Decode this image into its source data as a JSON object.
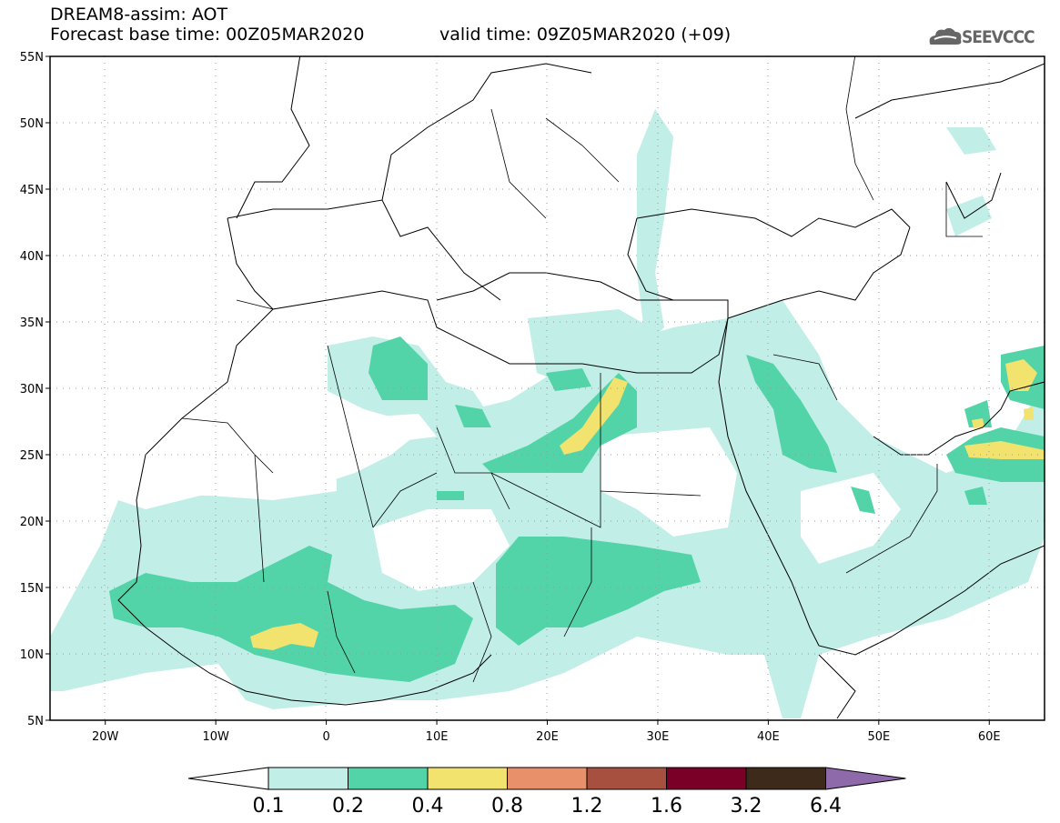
{
  "header": {
    "title": "DREAM8-assim: AOT",
    "forecast_base": "Forecast base time: 00Z05MAR2020",
    "valid_time": "valid time: 09Z05MAR2020 (+09)",
    "logo_text": "SEEVCCC"
  },
  "map": {
    "lat_labels": [
      "55N",
      "50N",
      "45N",
      "40N",
      "35N",
      "30N",
      "25N",
      "20N",
      "15N",
      "10N",
      "5N"
    ],
    "lon_labels": [
      "20W",
      "10W",
      "0",
      "10E",
      "20E",
      "30E",
      "40E",
      "50E",
      "60E"
    ],
    "lon_range": [
      -25,
      65
    ],
    "lat_range": [
      5,
      55
    ],
    "grid": "dotted"
  },
  "colorbar": {
    "levels": [
      "0.1",
      "0.2",
      "0.4",
      "0.8",
      "1.2",
      "1.6",
      "3.2",
      "6.4"
    ],
    "colors": [
      "#ffffff",
      "#c2eee8",
      "#52d4a8",
      "#f2e26e",
      "#e8906a",
      "#a8503f",
      "#7a0028",
      "#3d2a1a",
      "#8e6aaa"
    ]
  },
  "legend_colors": {
    "low": "#c2eee8",
    "mid": "#52d4a8",
    "high": "#f2e26e"
  }
}
